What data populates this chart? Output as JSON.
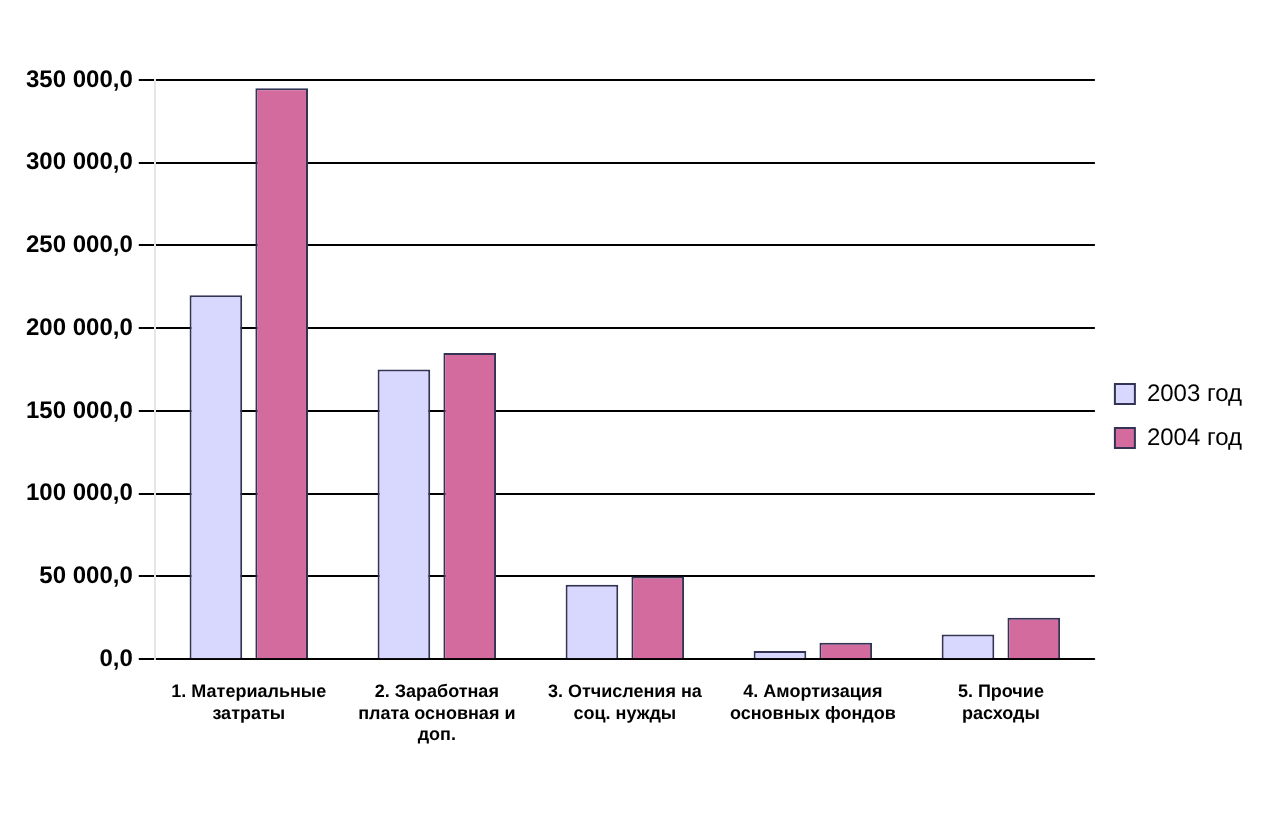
{
  "chart_data": {
    "type": "bar",
    "categories": [
      "1. Материальные затраты",
      "2. Заработная плата основная и доп.",
      "3. Отчисления на соц. нужды",
      "4. Амортизация основных фондов",
      "5. Прочие расходы"
    ],
    "series": [
      {
        "name": "2003 год",
        "color": "#d8d8ff",
        "values": [
          220000,
          175000,
          45000,
          5000,
          15000
        ]
      },
      {
        "name": "2004 год",
        "color": "#d36b9e",
        "values": [
          345000,
          185000,
          50000,
          10000,
          25000
        ]
      }
    ],
    "ylim": [
      0,
      350000
    ],
    "yticks": [
      {
        "value": 0,
        "label": "0,0"
      },
      {
        "value": 50000,
        "label": "50 000,0"
      },
      {
        "value": 100000,
        "label": "100 000,0"
      },
      {
        "value": 150000,
        "label": "150 000,0"
      },
      {
        "value": 200000,
        "label": "200 000,0"
      },
      {
        "value": 250000,
        "label": "250 000,0"
      },
      {
        "value": 300000,
        "label": "300 000,0"
      },
      {
        "value": 350000,
        "label": "350 000,0"
      }
    ],
    "grid": "y",
    "legend": "right"
  }
}
